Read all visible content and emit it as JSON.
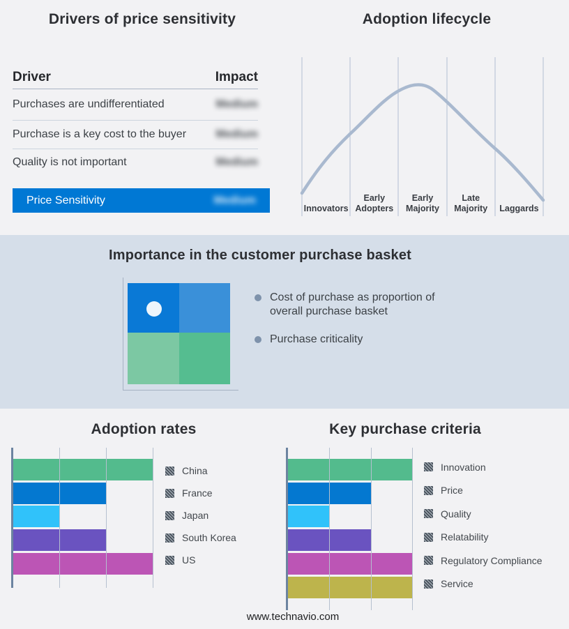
{
  "palette": {
    "accent_blue": "#0078d4",
    "band_bg": "#d5dee9",
    "page_bg": "#f2f2f4",
    "lifecycle_curve": "#a9b9cf"
  },
  "drivers_panel": {
    "title": "Drivers of price sensitivity",
    "table": {
      "headers": {
        "driver": "Driver",
        "impact": "Impact"
      },
      "rows": [
        {
          "driver": "Purchases are undifferentiated",
          "impact": "Medium"
        },
        {
          "driver": "Purchase is a key cost to the buyer",
          "impact": "Medium"
        },
        {
          "driver": "Quality is not important",
          "impact": "Medium"
        }
      ],
      "highlight_row": {
        "driver": "Price Sensitivity",
        "impact": "Medium"
      },
      "impact_values_blurred": true
    }
  },
  "basket_panel": {
    "title": "Importance in the customer purchase basket",
    "bullets": [
      "Cost of purchase as proportion of overall purchase basket",
      "Purchase criticality"
    ],
    "quadrant": {
      "top_left": "#0a79d6",
      "top_right": "#3a90d9",
      "bottom_left": "#7cc8a3",
      "bottom_right": "#55bd90",
      "dot": "#eef5fb"
    }
  },
  "chart_data": [
    {
      "id": "adoption_lifecycle",
      "type": "line",
      "title": "Adoption lifecycle",
      "shape": "bell curve rising through Innovators/Early Adopters, peaking over Early Majority, falling through Laggards",
      "categories": [
        "Innovators",
        "Early Adopters",
        "Early Majority",
        "Late Majority",
        "Laggards"
      ],
      "grid": "vertical stage-boundary lines, no numeric axes",
      "legend": "none"
    },
    {
      "id": "adoption_rates",
      "type": "bar",
      "orientation": "horizontal",
      "title": "Adoption rates",
      "categories": [
        "China",
        "France",
        "Japan",
        "South Korea",
        "US"
      ],
      "values": [
        3,
        2,
        1,
        2,
        3
      ],
      "xlim": [
        0,
        3
      ],
      "colors": [
        "#53bb8d",
        "#0478d0",
        "#30c2fa",
        "#6a53c0",
        "#bc55b5"
      ],
      "grid": "vertical gridlines at 1, 2, 3 (unlabeled)",
      "legend_position": "right"
    },
    {
      "id": "key_purchase_criteria",
      "type": "bar",
      "orientation": "horizontal",
      "title": "Key purchase criteria",
      "categories": [
        "Innovation",
        "Price",
        "Quality",
        "Relatability",
        "Regulatory Compliance",
        "Service"
      ],
      "values": [
        3,
        2,
        1,
        2,
        3,
        3
      ],
      "xlim": [
        0,
        3
      ],
      "colors": [
        "#53bb8d",
        "#0478d0",
        "#30c2fa",
        "#6a53c0",
        "#bc55b5",
        "#bdb44c"
      ],
      "grid": "vertical gridlines at 1, 2, 3 (unlabeled)",
      "legend_position": "right"
    }
  ],
  "footer": {
    "url": "www.technavio.com"
  }
}
